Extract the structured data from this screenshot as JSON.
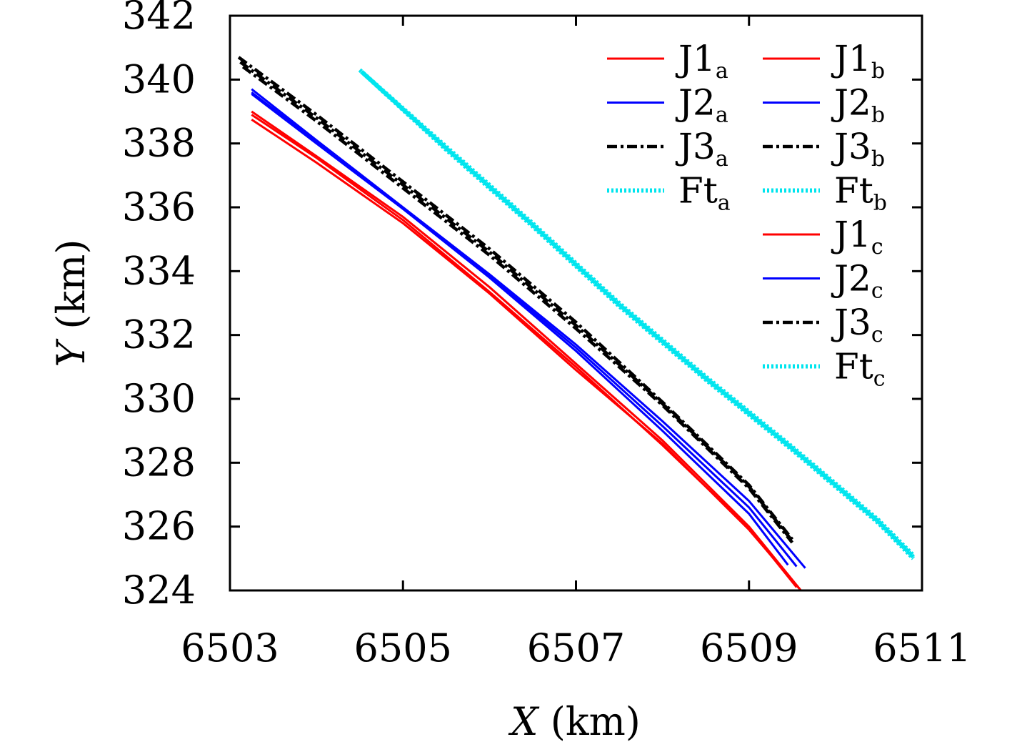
{
  "chart_data": {
    "type": "line",
    "xlabel": {
      "var": "X",
      "unit": " (km)"
    },
    "ylabel": {
      "var": "Y",
      "unit": " (km)"
    },
    "xlim": [
      6503,
      6511
    ],
    "ylim": [
      324,
      342
    ],
    "xticks": [
      "6503",
      "6505",
      "6507",
      "6509",
      "6511"
    ],
    "yticks": [
      "324",
      "326",
      "328",
      "330",
      "332",
      "334",
      "336",
      "338",
      "340",
      "342"
    ],
    "grid": false,
    "legend_placement": "top-right",
    "series": [
      {
        "name": "J1a",
        "label_main": "J1",
        "label_sub": "a",
        "color": "#ff0000",
        "style": "solid",
        "x": [
          6503.25,
          6504.0,
          6505.0,
          6506.0,
          6507.0,
          6508.0,
          6509.0,
          6509.6
        ],
        "y": [
          339.0,
          337.6,
          335.7,
          333.5,
          331.1,
          328.7,
          326.0,
          324.0
        ]
      },
      {
        "name": "J1b",
        "label_main": "J1",
        "label_sub": "b",
        "color": "#ff0000",
        "style": "solid",
        "x": [
          6503.25,
          6504.0,
          6505.0,
          6506.0,
          6507.0,
          6508.0,
          6509.0,
          6509.6
        ],
        "y": [
          338.75,
          337.4,
          335.5,
          333.3,
          330.9,
          328.6,
          325.9,
          324.0
        ]
      },
      {
        "name": "J1c",
        "label_main": "J1",
        "label_sub": "c",
        "color": "#ff0000",
        "style": "solid",
        "x": [
          6503.25,
          6504.0,
          6505.0,
          6506.0,
          6507.0,
          6508.0,
          6509.0,
          6509.55
        ],
        "y": [
          338.9,
          337.55,
          335.6,
          333.35,
          331.0,
          328.55,
          325.95,
          324.1
        ]
      },
      {
        "name": "J2a",
        "label_main": "J2",
        "label_sub": "a",
        "color": "#0000ff",
        "style": "solid",
        "x": [
          6503.25,
          6504.0,
          6505.0,
          6506.0,
          6507.0,
          6508.0,
          6509.0,
          6509.65
        ],
        "y": [
          339.7,
          338.1,
          336.0,
          333.9,
          331.7,
          329.3,
          326.8,
          324.7
        ]
      },
      {
        "name": "J2b",
        "label_main": "J2",
        "label_sub": "b",
        "color": "#0000ff",
        "style": "solid",
        "x": [
          6503.25,
          6504.0,
          6505.0,
          6506.0,
          6507.0,
          6508.0,
          6509.0,
          6509.45
        ],
        "y": [
          339.55,
          338.0,
          335.95,
          333.8,
          331.5,
          329.0,
          326.4,
          324.8
        ]
      },
      {
        "name": "J2c",
        "label_main": "J2",
        "label_sub": "c",
        "color": "#0000ff",
        "style": "solid",
        "x": [
          6503.25,
          6504.0,
          6505.0,
          6506.0,
          6507.0,
          6508.0,
          6509.0,
          6509.55
        ],
        "y": [
          339.6,
          338.05,
          335.95,
          333.85,
          331.6,
          329.15,
          326.6,
          324.75
        ]
      },
      {
        "name": "J3a",
        "label_main": "J3",
        "label_sub": "a",
        "color": "#000000",
        "style": "dashdot",
        "x": [
          6503.1,
          6504.0,
          6505.0,
          6506.0,
          6507.0,
          6508.0,
          6509.0,
          6509.5
        ],
        "y": [
          340.7,
          338.9,
          336.8,
          334.7,
          332.4,
          329.9,
          327.3,
          325.6
        ]
      },
      {
        "name": "J3b",
        "label_main": "J3",
        "label_sub": "b",
        "color": "#000000",
        "style": "dashdot",
        "x": [
          6503.15,
          6504.0,
          6505.0,
          6506.0,
          6507.0,
          6508.0,
          6509.0,
          6509.5
        ],
        "y": [
          340.4,
          338.7,
          336.6,
          334.5,
          332.2,
          329.8,
          327.2,
          325.5
        ]
      },
      {
        "name": "J3c",
        "label_main": "J3",
        "label_sub": "c",
        "color": "#000000",
        "style": "dashdot",
        "x": [
          6503.12,
          6504.0,
          6505.0,
          6506.0,
          6507.0,
          6508.0,
          6509.0,
          6509.5
        ],
        "y": [
          340.55,
          338.8,
          336.7,
          334.6,
          332.3,
          329.85,
          327.25,
          325.55
        ]
      },
      {
        "name": "Fta",
        "label_main": "Ft",
        "label_sub": "a",
        "color": "#00e5ee",
        "style": "dotted",
        "x": [
          6504.5,
          6505.5,
          6506.5,
          6507.5,
          6508.5,
          6509.5,
          6510.5,
          6510.9
        ],
        "y": [
          340.3,
          337.9,
          335.5,
          333.0,
          330.7,
          328.5,
          326.2,
          325.1
        ]
      },
      {
        "name": "Ftb",
        "label_main": "Ft",
        "label_sub": "b",
        "color": "#00e5ee",
        "style": "dotted",
        "x": [
          6504.52,
          6505.5,
          6506.5,
          6507.5,
          6508.5,
          6509.5,
          6510.5,
          6510.9
        ],
        "y": [
          340.25,
          337.85,
          335.45,
          332.95,
          330.65,
          328.45,
          326.15,
          325.05
        ]
      },
      {
        "name": "Ftc",
        "label_main": "Ft",
        "label_sub": "c",
        "color": "#00e5ee",
        "style": "dotted",
        "x": [
          6504.54,
          6505.5,
          6506.5,
          6507.5,
          6508.5,
          6509.5,
          6510.5,
          6510.9
        ],
        "y": [
          340.2,
          337.8,
          335.4,
          332.9,
          330.6,
          328.4,
          326.1,
          325.0
        ]
      }
    ],
    "legend_order": [
      "J1a",
      "J1b",
      "J2a",
      "J2b",
      "J3a",
      "J3b",
      "Fta",
      "Ftb",
      "J1c",
      "J2c",
      "J3c",
      "Ftc"
    ]
  }
}
